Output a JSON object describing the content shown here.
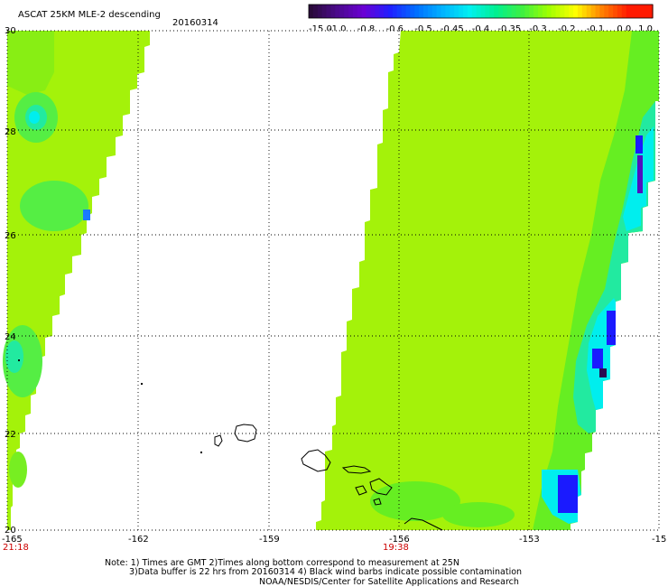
{
  "header": {
    "title": "ASCAT 25KM MLE-2 descending",
    "date": "20160314"
  },
  "colorbar": {
    "labels": [
      "-15.0",
      "-1.0",
      "-0.8",
      "-0.6",
      "-0.5",
      "-0.45",
      "-0.4",
      "-0.35",
      "-0.3",
      "-0.2",
      "-0.1",
      "0.0",
      "1.0"
    ],
    "colors": [
      "#2a0a3a",
      "#4b0a8c",
      "#6a00d4",
      "#2020ff",
      "#0070ff",
      "#00b4ff",
      "#00f0f0",
      "#00f090",
      "#40f040",
      "#a0ff00",
      "#ffff00",
      "#ff8000",
      "#ff1a00"
    ]
  },
  "map": {
    "lat_labels": [
      "30",
      "28",
      "26",
      "24",
      "22",
      "20"
    ],
    "lon_labels": [
      "-165",
      "-162",
      "-159",
      "-156",
      "-153",
      "-15"
    ],
    "time_labels": [
      "21:18",
      "19:38"
    ],
    "colors": {
      "base": "#a4f20a",
      "green": "#66ee22",
      "cyan": "#00eeee",
      "teal": "#22eaa0",
      "blue": "#1a1aff",
      "violet": "#5010c0",
      "dark": "#2a0a50"
    }
  },
  "footer": {
    "line1": "Note: 1) Times are GMT 2)Times along bottom correspond to measurement at 25N",
    "line2": "3)Data buffer is 22 hrs from 20160314 4) Black wind barbs indicate possible contamination",
    "line3": "NOAA/NESDIS/Center for Satellite Applications and Research"
  }
}
